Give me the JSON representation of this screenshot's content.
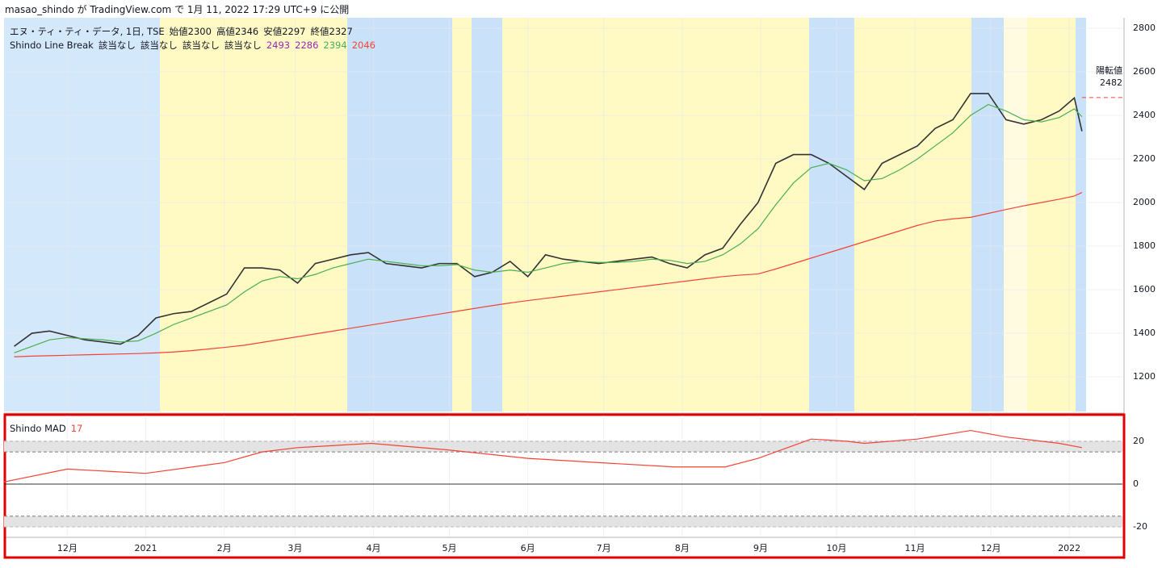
{
  "header": "masao_shindo が TradingView.com で 1月 11, 2022 17:29 UTC+9 に公開",
  "chart_data": [
    {
      "type": "line",
      "symbol": "エヌ・ティ・ティ・データ, 1日, TSE",
      "ohlc_labels": [
        "始値",
        "高値",
        "安値",
        "終値"
      ],
      "ohlc_values": [
        2300,
        2346,
        2297,
        2327
      ],
      "indicator": "Shindo Line Break",
      "indicator_states": [
        "該当なし",
        "該当なし",
        "該当なし",
        "該当なし"
      ],
      "indicator_values": [
        2493,
        2286,
        2394,
        2046
      ],
      "indicator_colors": [
        "#9c27b0",
        "#9c27b0",
        "#4caf50",
        "#f44336"
      ],
      "reversal_label": "陽転値",
      "reversal_value": 2482,
      "reversal_color": "#f44336",
      "x": [
        9,
        16,
        23,
        30,
        37,
        44,
        51,
        58,
        65,
        72,
        79,
        86,
        93,
        100,
        107,
        114,
        121,
        128,
        135,
        142,
        149,
        156,
        163,
        170,
        177,
        184,
        191,
        198,
        205,
        212,
        219,
        226,
        233,
        240,
        247,
        254,
        261,
        268,
        275,
        282,
        289,
        296,
        303,
        310,
        317,
        324,
        331,
        338,
        345,
        352,
        359,
        366,
        373,
        380,
        387,
        394,
        401,
        408,
        415,
        422,
        428,
        431
      ],
      "series": [
        {
          "color": "#333333",
          "values": [
            1340,
            1400,
            1410,
            1390,
            1370,
            1360,
            1350,
            1390,
            1470,
            1490,
            1500,
            1540,
            1580,
            1700,
            1700,
            1690,
            1630,
            1720,
            1740,
            1760,
            1770,
            1720,
            1710,
            1700,
            1720,
            1720,
            1660,
            1680,
            1730,
            1660,
            1760,
            1740,
            1730,
            1720,
            1730,
            1740,
            1750,
            1720,
            1700,
            1760,
            1790,
            1900,
            2000,
            2180,
            2220,
            2220,
            2180,
            2120,
            2060,
            2180,
            2220,
            2260,
            2340,
            2380,
            2500,
            2500,
            2380,
            2360,
            2380,
            2420,
            2480,
            2327
          ]
        },
        {
          "color": "#4caf50",
          "values": [
            1310,
            1340,
            1370,
            1380,
            1375,
            1370,
            1360,
            1365,
            1400,
            1440,
            1470,
            1500,
            1530,
            1590,
            1640,
            1660,
            1650,
            1670,
            1700,
            1720,
            1740,
            1730,
            1720,
            1710,
            1710,
            1715,
            1690,
            1680,
            1690,
            1680,
            1700,
            1720,
            1730,
            1725,
            1725,
            1730,
            1740,
            1735,
            1720,
            1730,
            1760,
            1810,
            1880,
            1990,
            2090,
            2160,
            2180,
            2150,
            2100,
            2110,
            2150,
            2200,
            2260,
            2320,
            2400,
            2450,
            2420,
            2380,
            2370,
            2390,
            2430,
            2394
          ]
        },
        {
          "color": "#f44336",
          "values": [
            1292,
            1295,
            1297,
            1299,
            1301,
            1303,
            1305,
            1307,
            1310,
            1314,
            1320,
            1328,
            1336,
            1345,
            1358,
            1371,
            1384,
            1397,
            1410,
            1423,
            1436,
            1449,
            1462,
            1475,
            1488,
            1501,
            1514,
            1527,
            1539,
            1550,
            1560,
            1570,
            1580,
            1590,
            1600,
            1610,
            1620,
            1630,
            1640,
            1650,
            1660,
            1667,
            1672,
            1695,
            1720,
            1745,
            1770,
            1795,
            1820,
            1845,
            1870,
            1895,
            1915,
            1925,
            1932,
            1950,
            1968,
            1985,
            2000,
            2015,
            2030,
            2046
          ]
        }
      ],
      "xlim": [
        5,
        447
      ],
      "ylim": [
        1041,
        2848
      ],
      "yticks": [
        1200,
        1400,
        1600,
        1800,
        2000,
        2200,
        2400,
        2600,
        2800
      ]
    },
    {
      "type": "line",
      "title": "Shindo MAD",
      "last_value": 17,
      "last_color": "#f44336",
      "x": [
        5,
        30,
        61,
        92,
        107,
        121,
        150,
        180,
        212,
        240,
        270,
        290,
        303,
        324,
        338,
        345,
        366,
        387,
        401,
        422,
        431
      ],
      "series": [
        {
          "color": "#f44336",
          "values": [
            1,
            7,
            5,
            10,
            15,
            17,
            19,
            16,
            12,
            10,
            8,
            8,
            12,
            21,
            20,
            19,
            21,
            25,
            22,
            19,
            17
          ]
        }
      ],
      "levels": [
        [
          15,
          20
        ],
        [
          -20,
          -15
        ]
      ],
      "xlim": [
        5,
        447
      ],
      "ylim": [
        -24.5,
        32
      ],
      "yticks": [
        -20,
        0,
        20
      ],
      "xticks": [
        {
          "value": 30,
          "label": "12月"
        },
        {
          "value": 61,
          "label": "2021"
        },
        {
          "value": 92,
          "label": "2月"
        },
        {
          "value": 120,
          "label": "3月"
        },
        {
          "value": 151,
          "label": "4月"
        },
        {
          "value": 181,
          "label": "5月"
        },
        {
          "value": 212,
          "label": "6月"
        },
        {
          "value": 242,
          "label": "7月"
        },
        {
          "value": 273,
          "label": "8月"
        },
        {
          "value": 304,
          "label": "9月"
        },
        {
          "value": 334,
          "label": "10月"
        },
        {
          "value": 365,
          "label": "11月"
        },
        {
          "value": 395,
          "label": "12月"
        },
        {
          "value": 426,
          "label": "2022"
        }
      ]
    }
  ]
}
